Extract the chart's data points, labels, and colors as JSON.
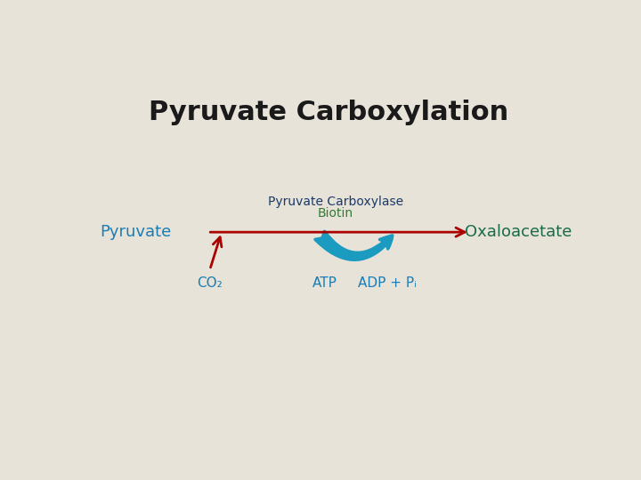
{
  "title": "Pyruvate Carboxylation",
  "bg_color": "#e8e3d8",
  "title_color": "#1a1a1a",
  "title_fontsize": 22,
  "title_fontweight": "bold",
  "enzyme_label": "Pyruvate Carboxylase",
  "enzyme_color": "#1a3a6b",
  "enzyme_fontsize": 10,
  "biotin_label": "Biotin",
  "biotin_color": "#2e7d32",
  "biotin_fontsize": 10,
  "pyruvate_label": "Pyruvate",
  "pyruvate_color": "#1a7db5",
  "pyruvate_fontsize": 13,
  "oxaloacetate_label": "Oxaloacetate",
  "oxaloacetate_color": "#1a6b4a",
  "oxaloacetate_fontsize": 13,
  "co2_label": "CO₂",
  "co2_color": "#1a7db5",
  "co2_fontsize": 11,
  "atp_label": "ATP",
  "atp_color": "#1a7db5",
  "atp_fontsize": 11,
  "adp_label": "ADP + Pᵢ",
  "adp_color": "#1a7db5",
  "adp_fontsize": 11,
  "arrow_color": "#aa0000",
  "curved_arrow_color": "#1a9bbf"
}
